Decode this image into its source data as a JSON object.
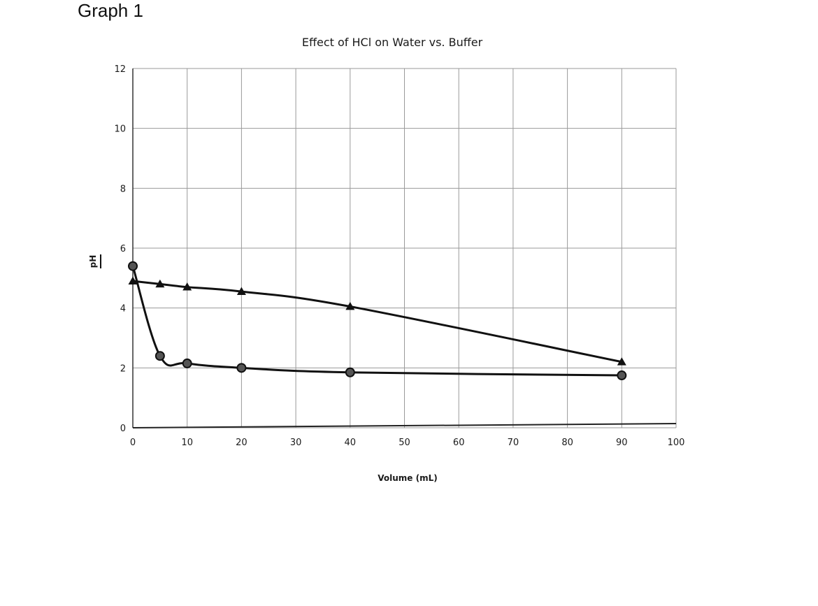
{
  "page_heading": "Graph 1",
  "chart_data": {
    "type": "line",
    "title": "Effect of HCl on Water vs. Buffer",
    "xlabel": "Volume (mL)",
    "ylabel": "pH",
    "xlim": [
      0,
      100
    ],
    "ylim": [
      0,
      12
    ],
    "x_ticks": [
      0,
      10,
      20,
      30,
      40,
      50,
      60,
      70,
      80,
      90,
      100
    ],
    "y_ticks": [
      0,
      2,
      4,
      6,
      8,
      10,
      12
    ],
    "x_tick_labels": [
      "0",
      "10",
      "20",
      "30",
      "40",
      "50",
      "60",
      "70",
      "80",
      "90",
      "100"
    ],
    "y_tick_labels": [
      "0",
      "2",
      "4",
      "6",
      "8",
      "10",
      "12"
    ],
    "grid": true,
    "legend": "none",
    "series": [
      {
        "marker": "triangle",
        "color": "#111111",
        "points": [
          {
            "x": 0,
            "y": 4.9
          },
          {
            "x": 5,
            "y": 4.8
          },
          {
            "x": 10,
            "y": 4.7
          },
          {
            "x": 20,
            "y": 4.55
          },
          {
            "x": 40,
            "y": 4.05
          },
          {
            "x": 90,
            "y": 2.2
          }
        ]
      },
      {
        "marker": "circle",
        "color": "#111111",
        "points": [
          {
            "x": 0,
            "y": 5.4
          },
          {
            "x": 5,
            "y": 2.4
          },
          {
            "x": 10,
            "y": 2.15
          },
          {
            "x": 20,
            "y": 2.0
          },
          {
            "x": 40,
            "y": 1.85
          },
          {
            "x": 90,
            "y": 1.75
          }
        ]
      }
    ]
  }
}
